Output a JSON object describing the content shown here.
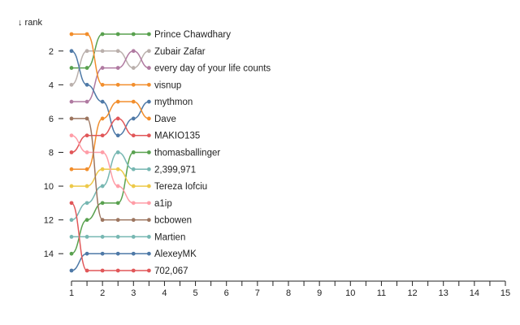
{
  "chart_data": {
    "type": "line",
    "y_axis_label": "↓ rank",
    "x_ticks": [
      1,
      2,
      3,
      4,
      5,
      6,
      7,
      8,
      9,
      10,
      11,
      12,
      13,
      14,
      15
    ],
    "y_ticks": [
      2,
      4,
      6,
      8,
      10,
      12,
      14
    ],
    "xlim": [
      1,
      15
    ],
    "ylim": [
      1,
      15
    ],
    "y_reversed": true,
    "grid": false,
    "x": [
      1,
      1.5,
      2,
      2.5,
      3,
      3.5
    ],
    "series": [
      {
        "name": "Prince Chawdhary",
        "color": "#59a14f",
        "ranks": [
          3,
          3,
          1,
          1,
          1,
          1
        ]
      },
      {
        "name": "Zubair Zafar",
        "color": "#bab0ac",
        "ranks": [
          4,
          2,
          2,
          2,
          3,
          2
        ]
      },
      {
        "name": "every day of your life counts",
        "color": "#b07aa1",
        "ranks": [
          5,
          5,
          3,
          3,
          2,
          3
        ]
      },
      {
        "name": "visnup",
        "color": "#f28e2c",
        "ranks": [
          1,
          1,
          4,
          4,
          4,
          4
        ]
      },
      {
        "name": "mythmon",
        "color": "#4e79a7",
        "ranks": [
          2,
          4,
          5,
          7,
          6,
          5
        ]
      },
      {
        "name": "Dave",
        "color": "#f28e2c",
        "ranks": [
          9,
          9,
          6,
          5,
          5,
          6
        ]
      },
      {
        "name": "MAKIO135",
        "color": "#e15759",
        "ranks": [
          8,
          7,
          7,
          6,
          7,
          7
        ]
      },
      {
        "name": "thomasballinger",
        "color": "#59a14f",
        "ranks": [
          14,
          12,
          11,
          11,
          8,
          8
        ]
      },
      {
        "name": "2,399,971",
        "color": "#76b7b2",
        "ranks": [
          12,
          11,
          10,
          8,
          9,
          9
        ]
      },
      {
        "name": "Tereza Iofciu",
        "color": "#edc949",
        "ranks": [
          10,
          10,
          9,
          9,
          10,
          10
        ]
      },
      {
        "name": "a1ip",
        "color": "#ff9da7",
        "ranks": [
          7,
          8,
          8,
          10,
          11,
          11
        ]
      },
      {
        "name": "bcbowen",
        "color": "#9c755f",
        "ranks": [
          6,
          6,
          12,
          12,
          12,
          12
        ]
      },
      {
        "name": "Martien",
        "color": "#76b7b2",
        "ranks": [
          13,
          13,
          13,
          13,
          13,
          13
        ]
      },
      {
        "name": "AlexeyMK",
        "color": "#4e79a7",
        "ranks": [
          15,
          14,
          14,
          14,
          14,
          14
        ]
      },
      {
        "name": "702,067",
        "color": "#e15759",
        "ranks": [
          11,
          15,
          15,
          15,
          15,
          15
        ]
      }
    ]
  }
}
